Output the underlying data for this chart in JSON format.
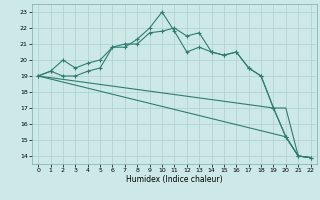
{
  "xlabel": "Humidex (Indice chaleur)",
  "bg_color": "#cce9e8",
  "grid_color": "#aed0cf",
  "line_color": "#2e7d6e",
  "x_ticks": [
    0,
    1,
    2,
    3,
    4,
    5,
    6,
    7,
    8,
    9,
    10,
    11,
    12,
    13,
    14,
    15,
    16,
    17,
    18,
    19,
    20,
    21,
    22
  ],
  "y_ticks": [
    14,
    15,
    16,
    17,
    18,
    19,
    20,
    21,
    22,
    23
  ],
  "xlim": [
    -0.5,
    22.5
  ],
  "ylim": [
    13.5,
    23.5
  ],
  "line1_x": [
    0,
    1,
    2,
    3,
    4,
    5,
    6,
    7,
    8,
    9,
    10,
    11,
    12,
    13,
    14,
    15,
    16,
    17,
    18,
    19,
    20,
    21,
    22
  ],
  "line1_y": [
    19.0,
    19.3,
    19.0,
    19.0,
    19.3,
    19.5,
    20.8,
    20.8,
    21.3,
    22.0,
    23.0,
    21.8,
    20.5,
    20.8,
    20.5,
    20.3,
    20.5,
    19.5,
    19.0,
    17.0,
    15.2,
    14.0,
    13.9
  ],
  "line2_x": [
    0,
    1,
    2,
    3,
    4,
    5,
    6,
    7,
    8,
    9,
    10,
    11,
    12,
    13,
    14,
    15,
    16,
    17,
    18,
    19,
    20,
    21,
    22
  ],
  "line2_y": [
    19.0,
    19.3,
    20.0,
    19.5,
    19.8,
    20.0,
    20.8,
    21.0,
    21.0,
    21.7,
    21.8,
    22.0,
    21.5,
    21.7,
    20.5,
    20.3,
    20.5,
    19.5,
    19.0,
    17.0,
    15.2,
    14.0,
    13.9
  ],
  "line3_x": [
    0,
    19,
    20,
    21,
    22
  ],
  "line3_y": [
    19.0,
    17.0,
    17.0,
    14.0,
    13.9
  ],
  "line4_x": [
    0,
    20,
    21,
    22
  ],
  "line4_y": [
    19.0,
    15.2,
    14.0,
    13.9
  ]
}
